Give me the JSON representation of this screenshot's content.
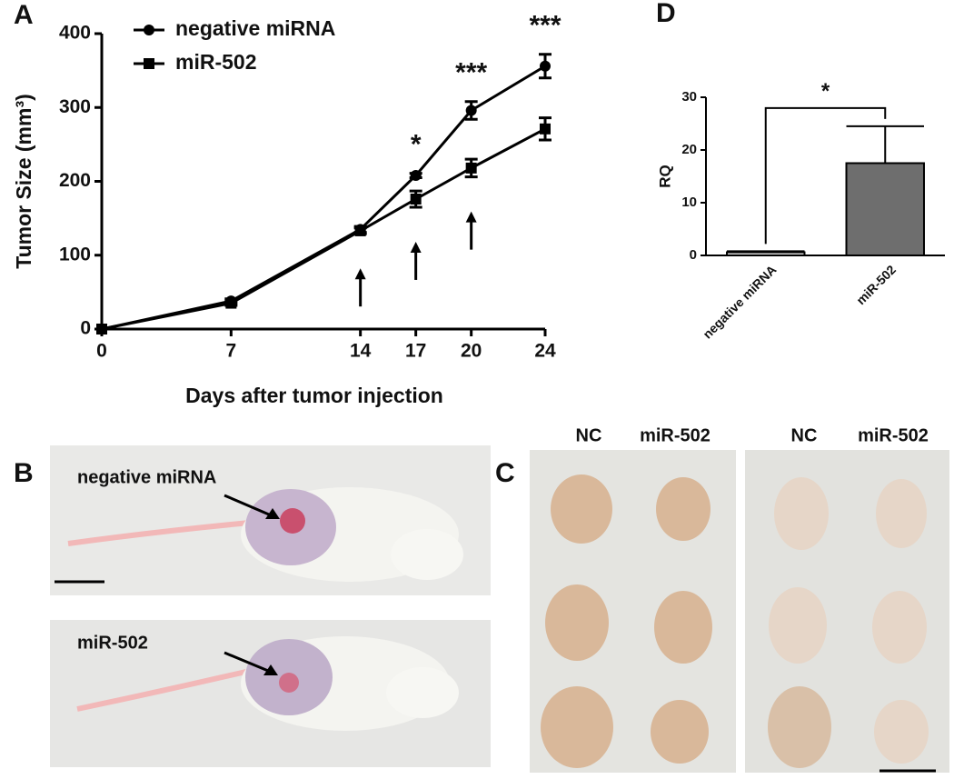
{
  "chart_data": [
    {
      "type": "line",
      "panel_label": "A",
      "xlabel": "Days after tumor injection",
      "ylabel": "Tumor Size (mm³)",
      "x": [
        0,
        7,
        14,
        17,
        20,
        24
      ],
      "xlim": [
        0,
        24
      ],
      "xticks": [
        0,
        7,
        14,
        17,
        20,
        24
      ],
      "ylim": [
        0,
        400
      ],
      "yticks": [
        0,
        100,
        200,
        300,
        400
      ],
      "legend": "top-left",
      "series": [
        {
          "name": "negative miRNA",
          "color": "#000000",
          "marker": "circle",
          "values": [
            0,
            38,
            135,
            208,
            296,
            356
          ],
          "errors": [
            0,
            3,
            4,
            3,
            12,
            16
          ]
        },
        {
          "name": "miR-502",
          "color": "#000000",
          "marker": "square",
          "values": [
            0,
            35,
            133,
            176,
            218,
            271
          ],
          "errors": [
            0,
            3,
            4,
            11,
            12,
            15
          ]
        }
      ],
      "annotations": [
        {
          "text": "*",
          "x": 17
        },
        {
          "text": "***",
          "x": 20
        },
        {
          "text": "***",
          "x": 24
        }
      ],
      "arrows": [
        14,
        17,
        20
      ]
    },
    {
      "type": "bar",
      "panel_label": "D",
      "ylabel": "RQ",
      "categories": [
        "negative miRNA",
        "miR-502"
      ],
      "values": [
        0.6,
        17.5
      ],
      "errors": [
        0.2,
        7
      ],
      "colors": [
        "#d8d8d8",
        "#6e6e6e"
      ],
      "ylim": [
        0,
        30
      ],
      "yticks": [
        0,
        10,
        20,
        30
      ],
      "significance": "*"
    }
  ],
  "photos": {
    "B": {
      "panel_label": "B",
      "labels": [
        "negative miRNA",
        "miR-502"
      ]
    },
    "C": {
      "panel_label": "C",
      "columns": [
        "NC",
        "miR-502",
        "NC",
        "miR-502"
      ]
    }
  }
}
